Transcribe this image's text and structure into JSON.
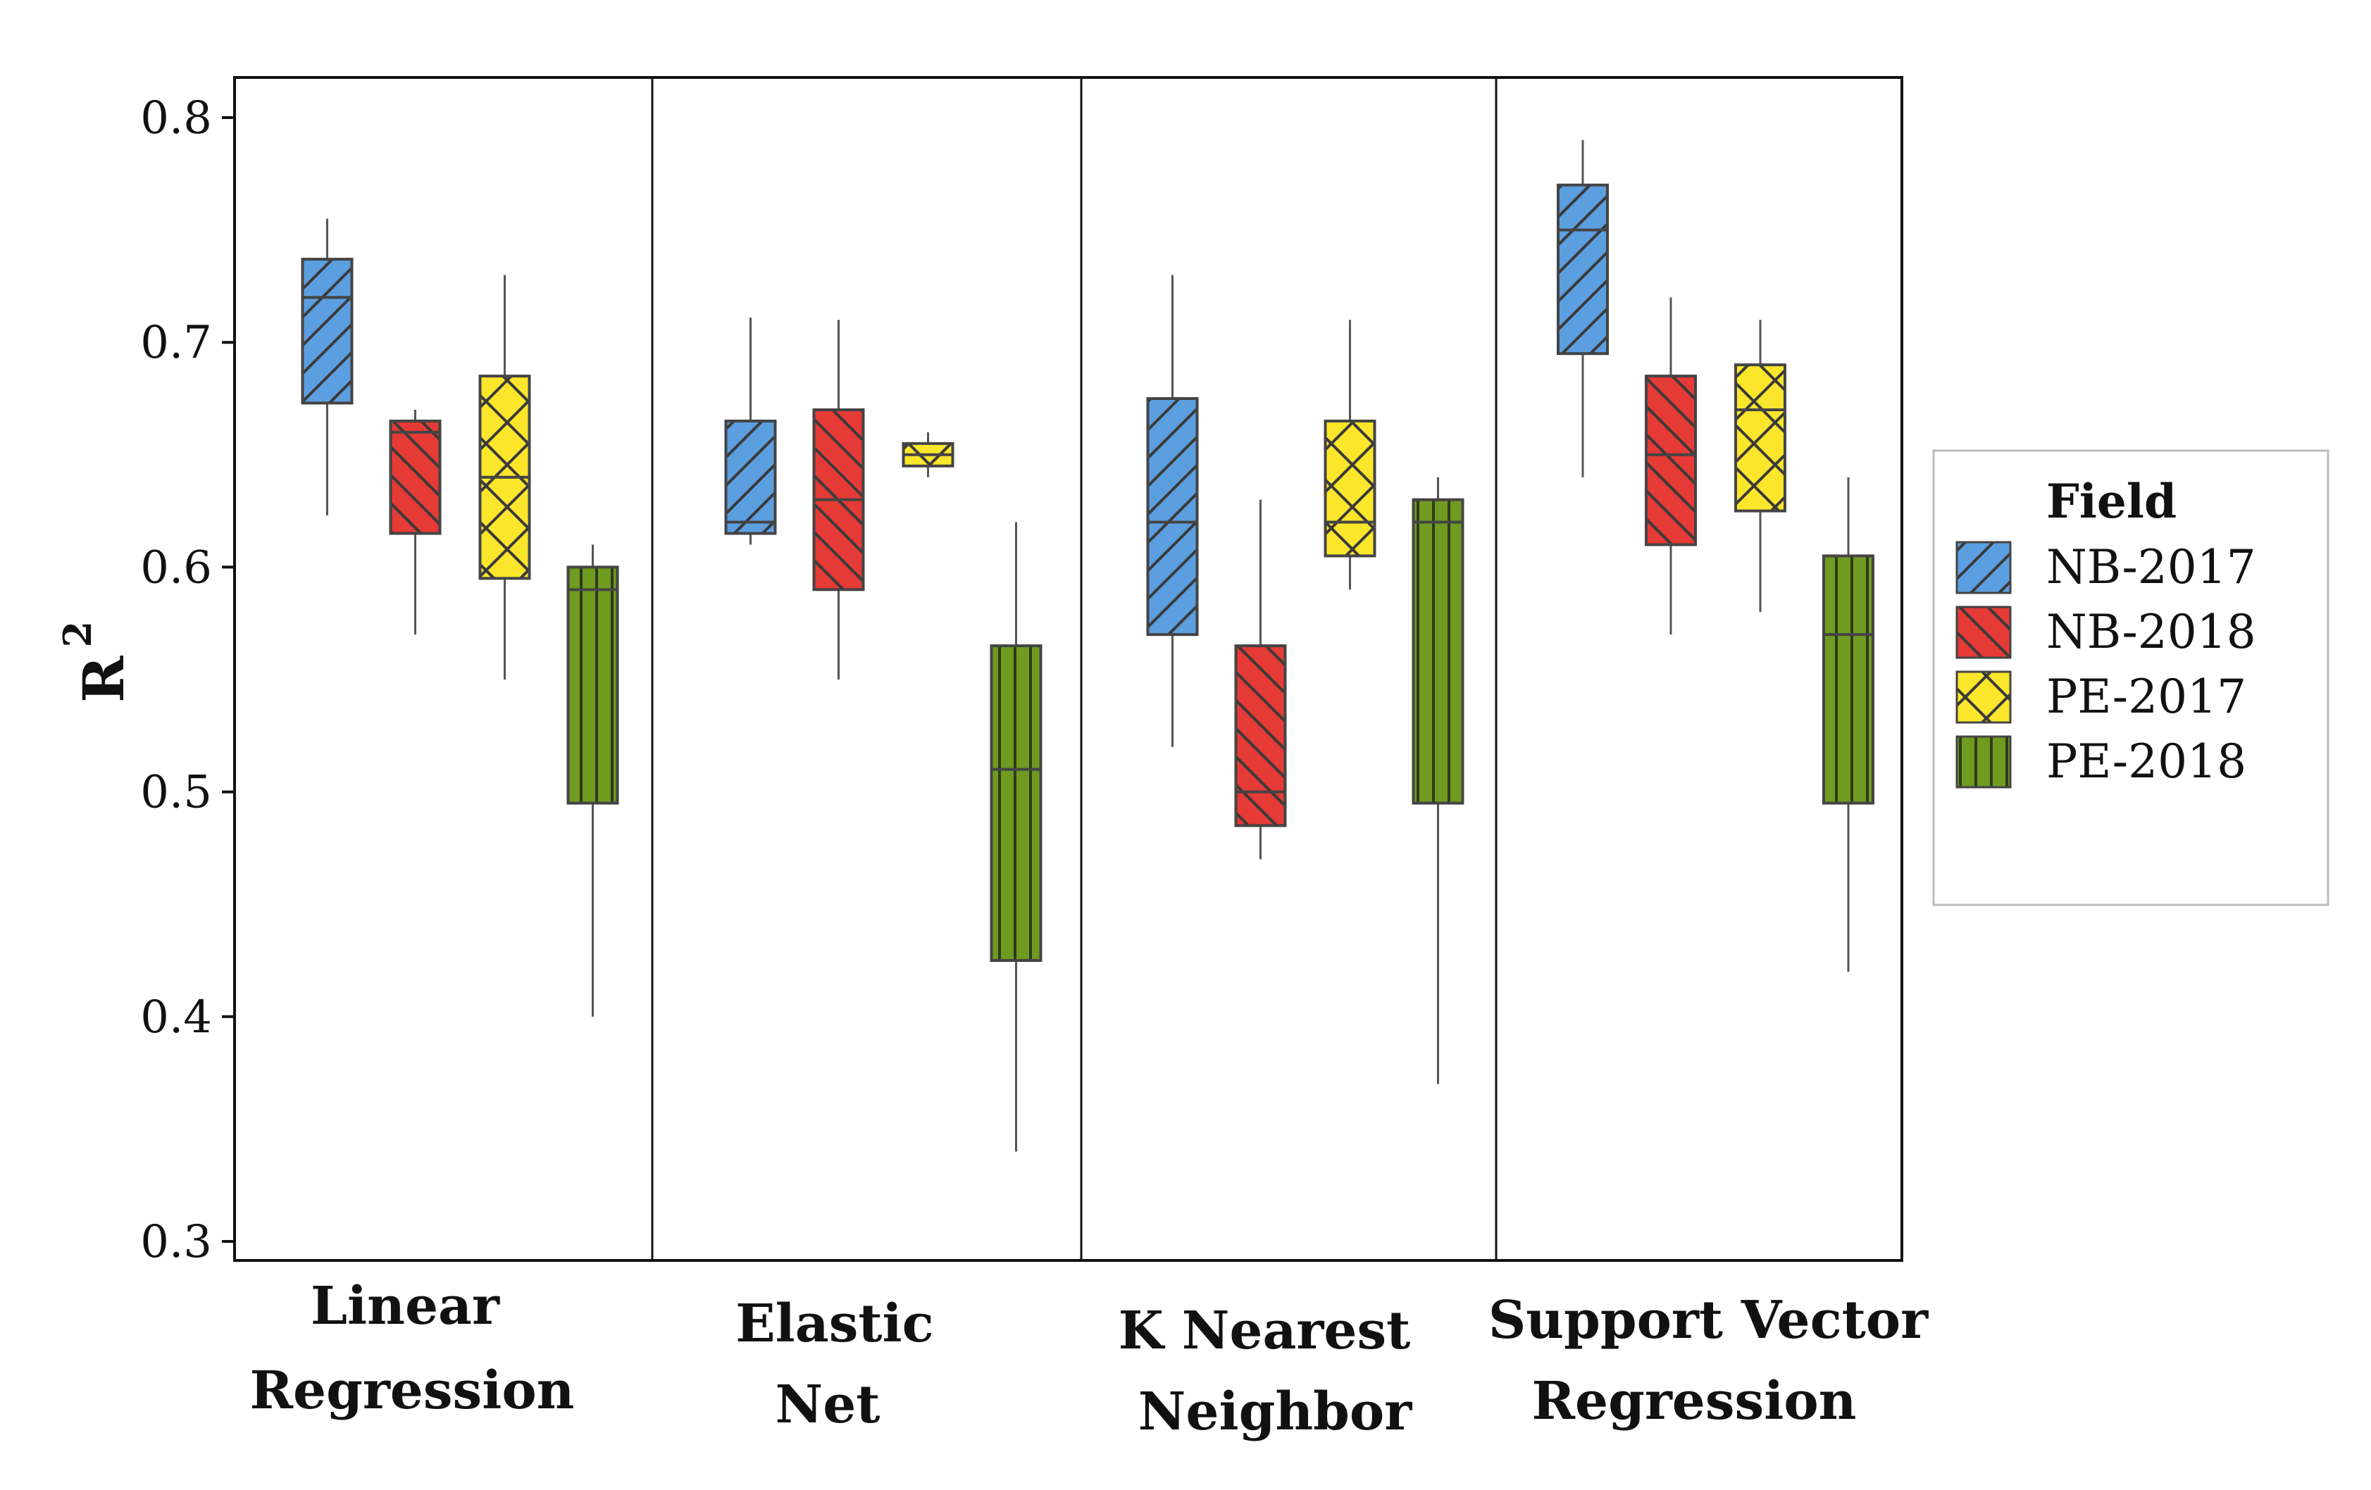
{
  "chart_data": {
    "type": "boxplot",
    "ylabel": "R",
    "ylabel_superscript": "2",
    "xlabel": "",
    "ylim": [
      0.3,
      0.8
    ],
    "yticks": [
      0.3,
      0.4,
      0.5,
      0.6,
      0.7,
      0.8
    ],
    "ytick_labels": [
      "0.3",
      "0.4",
      "0.5",
      "0.6",
      "0.7",
      "0.8"
    ],
    "groups": [
      {
        "label_lines": [
          "Linear",
          "Regression"
        ]
      },
      {
        "label_lines": [
          "Elastic",
          "Net"
        ]
      },
      {
        "label_lines": [
          "K Nearest",
          "Neighbor"
        ]
      },
      {
        "label_lines": [
          "Support Vector",
          "Regression"
        ]
      }
    ],
    "legend": {
      "title": "Field",
      "position": "right",
      "entries": [
        {
          "name": "NB-2017",
          "color": "#5b9fe0",
          "pattern": "forward-diagonal"
        },
        {
          "name": "NB-2018",
          "color": "#e53a35",
          "pattern": "backward-diagonal"
        },
        {
          "name": "PE-2017",
          "color": "#fbe62b",
          "pattern": "crosshatch"
        },
        {
          "name": "PE-2018",
          "color": "#6f9b20",
          "pattern": "vertical"
        }
      ]
    },
    "series": [
      {
        "name": "NB-2017",
        "boxes": [
          {
            "min": 0.623,
            "q1": 0.673,
            "median": 0.72,
            "q3": 0.737,
            "max": 0.755
          },
          {
            "min": 0.61,
            "q1": 0.615,
            "median": 0.62,
            "q3": 0.665,
            "max": 0.711
          },
          {
            "min": 0.52,
            "q1": 0.57,
            "median": 0.62,
            "q3": 0.675,
            "max": 0.73
          },
          {
            "min": 0.64,
            "q1": 0.695,
            "median": 0.75,
            "q3": 0.77,
            "max": 0.79
          }
        ]
      },
      {
        "name": "NB-2018",
        "boxes": [
          {
            "min": 0.57,
            "q1": 0.615,
            "median": 0.66,
            "q3": 0.665,
            "max": 0.67
          },
          {
            "min": 0.55,
            "q1": 0.59,
            "median": 0.63,
            "q3": 0.67,
            "max": 0.71
          },
          {
            "min": 0.47,
            "q1": 0.485,
            "median": 0.5,
            "q3": 0.565,
            "max": 0.63
          },
          {
            "min": 0.57,
            "q1": 0.61,
            "median": 0.65,
            "q3": 0.685,
            "max": 0.72
          }
        ]
      },
      {
        "name": "PE-2017",
        "boxes": [
          {
            "min": 0.55,
            "q1": 0.595,
            "median": 0.64,
            "q3": 0.685,
            "max": 0.73
          },
          {
            "min": 0.64,
            "q1": 0.645,
            "median": 0.65,
            "q3": 0.655,
            "max": 0.66
          },
          {
            "min": 0.59,
            "q1": 0.605,
            "median": 0.62,
            "q3": 0.665,
            "max": 0.71
          },
          {
            "min": 0.58,
            "q1": 0.625,
            "median": 0.67,
            "q3": 0.69,
            "max": 0.71
          }
        ]
      },
      {
        "name": "PE-2018",
        "boxes": [
          {
            "min": 0.4,
            "q1": 0.495,
            "median": 0.59,
            "q3": 0.6,
            "max": 0.61
          },
          {
            "min": 0.34,
            "q1": 0.425,
            "median": 0.51,
            "q3": 0.565,
            "max": 0.62
          },
          {
            "min": 0.37,
            "q1": 0.495,
            "median": 0.62,
            "q3": 0.63,
            "max": 0.64
          },
          {
            "min": 0.42,
            "q1": 0.495,
            "median": 0.57,
            "q3": 0.605,
            "max": 0.64
          }
        ]
      }
    ]
  }
}
